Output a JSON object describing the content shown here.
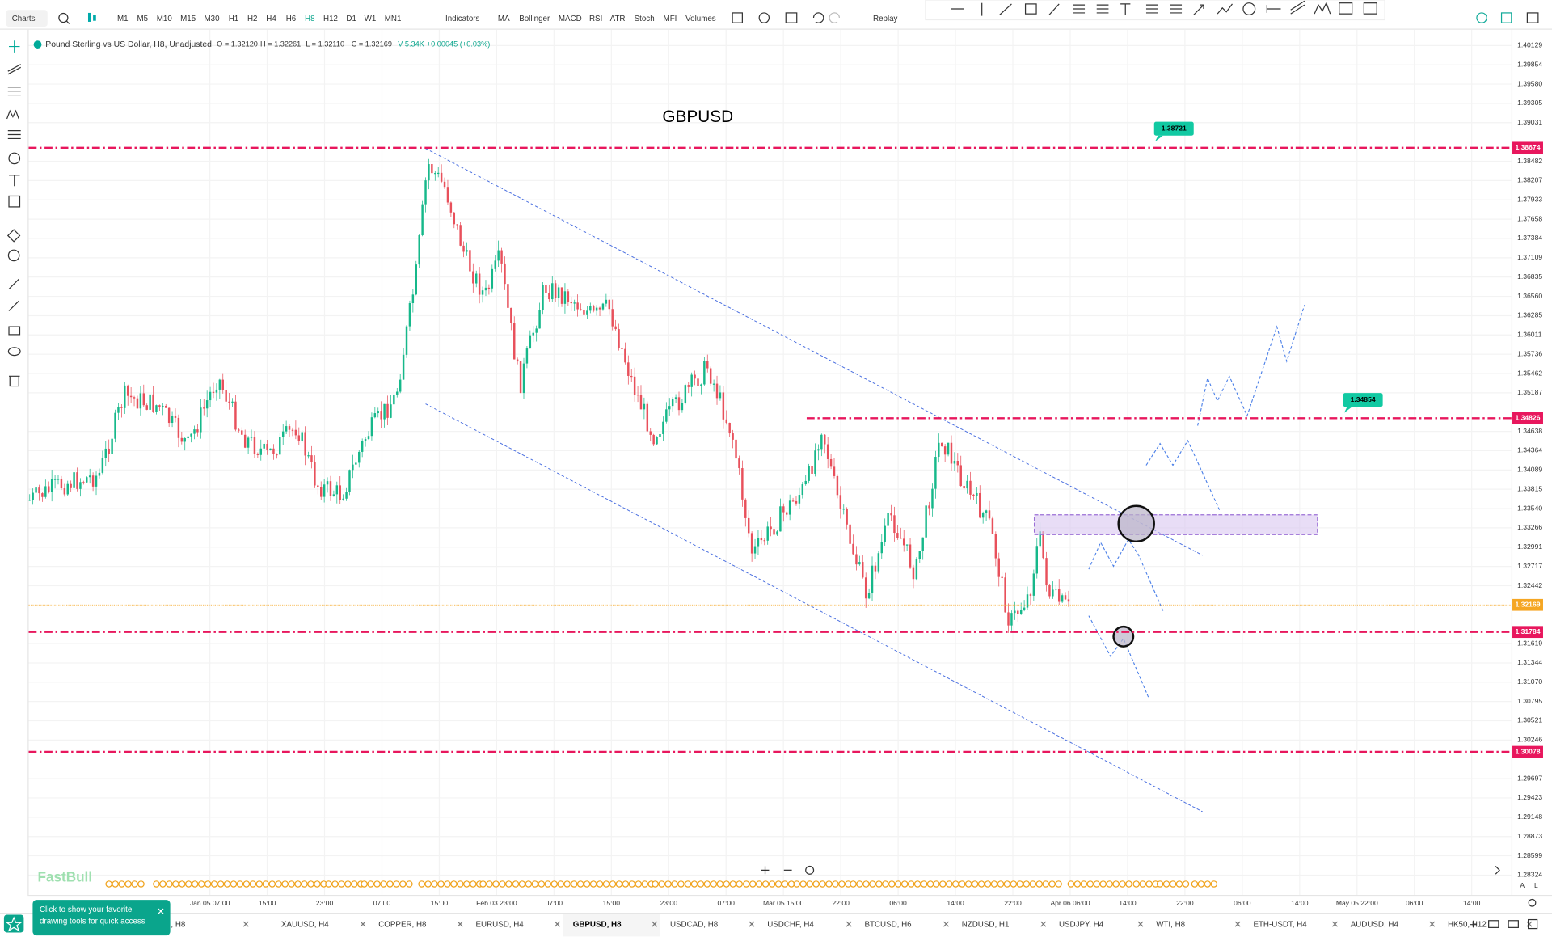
{
  "toolbar": {
    "charts": "Charts",
    "timeframes": [
      "M1",
      "M5",
      "M10",
      "M15",
      "M30",
      "H1",
      "H2",
      "H4",
      "H6",
      "H8",
      "H12",
      "D1",
      "W1",
      "MN1"
    ],
    "active_timeframe": "H8",
    "indicators": "Indicators",
    "studies": [
      "MA",
      "Bollinger",
      "MACD",
      "RSI",
      "ATR",
      "Stoch",
      "MFI",
      "Volumes"
    ],
    "replay": "Replay"
  },
  "legend": {
    "symbol": "Pound Sterling vs US Dollar, H8, Unadjusted",
    "fields": [
      "O = 1.32120",
      "H = 1.32261",
      "L = 1.32110",
      "C = 1.32169",
      "V 5.34K",
      "+0.00045 (+0.03%)"
    ]
  },
  "chart": {
    "title": "GBPUSD",
    "price_ticks": [
      "1.40129",
      "1.39854",
      "1.39580",
      "1.39305",
      "1.39031",
      "1.38482",
      "1.38207",
      "1.37933",
      "1.37658",
      "1.37384",
      "1.37109",
      "1.36835",
      "1.36560",
      "1.36285",
      "1.36011",
      "1.35736",
      "1.35462",
      "1.35187",
      "1.34638",
      "1.34364",
      "1.34089",
      "1.33815",
      "1.33540",
      "1.33266",
      "1.32991",
      "1.32717",
      "1.32442",
      "1.31619",
      "1.31344",
      "1.31070",
      "1.30795",
      "1.30521",
      "1.30246",
      "1.29697",
      "1.29423",
      "1.29148",
      "1.28873",
      "1.28599",
      "1.28324"
    ],
    "price_markers": [
      {
        "label": "1.38674",
        "color": "#e8175d"
      },
      {
        "label": "1.34826",
        "color": "#e8175d"
      },
      {
        "label": "1.32169",
        "color": "#f5a623"
      },
      {
        "label": "1.31784",
        "color": "#e8175d"
      },
      {
        "label": "1.30078",
        "color": "#e8175d"
      }
    ],
    "callouts": [
      "1.38721",
      "1.34854"
    ],
    "time_labels": [
      "Jan 05 07:00",
      "15:00",
      "23:00",
      "07:00",
      "15:00",
      "Feb 03 23:00",
      "07:00",
      "15:00",
      "23:00",
      "07:00",
      "Mar 05 15:00",
      "22:00",
      "06:00",
      "14:00",
      "22:00",
      "Apr 06 06:00",
      "14:00",
      "22:00",
      "06:00",
      "14:00",
      "May 05 22:00",
      "06:00",
      "14:00"
    ],
    "watermark": "FastBull"
  },
  "tooltip": "Click to show your favorite drawing tools for quick access",
  "tabs": [
    "..., H8",
    "XAUUSD, H4",
    "COPPER, H8",
    "EURUSD, H4",
    "GBPUSD, H8",
    "USDCAD, H8",
    "USDCHF, H4",
    "BTCUSD, H6",
    "NZDUSD, H1",
    "USDJPY, H4",
    "WTI, H8",
    "ETH-USDT, H4",
    "AUDUSD, H4",
    "HK50, H12"
  ],
  "active_tab": "GBPUSD, H8",
  "scale_buttons": [
    "A",
    "L"
  ]
}
